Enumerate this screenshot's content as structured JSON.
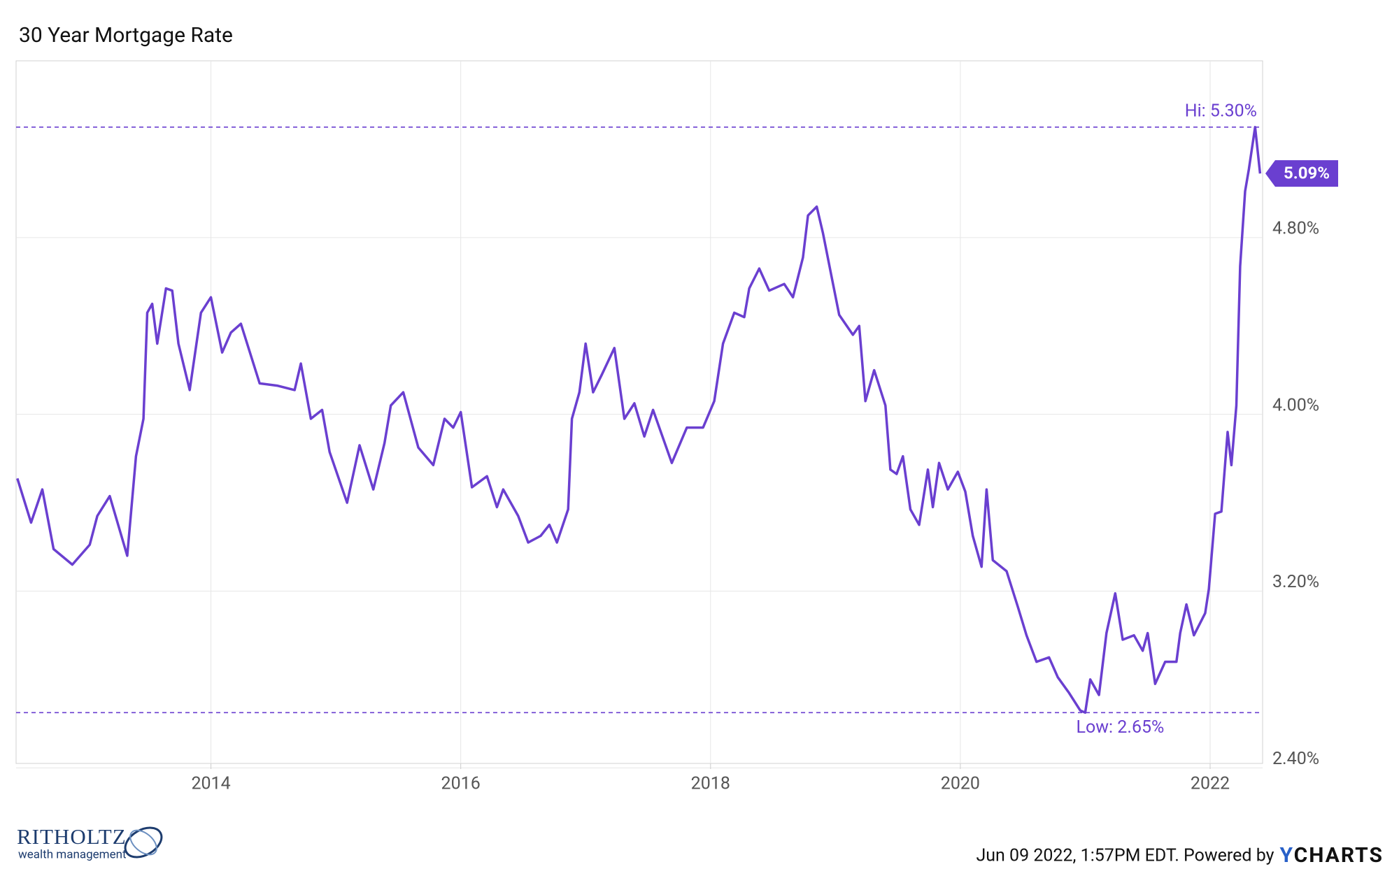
{
  "chart_data": {
    "type": "line",
    "title": "30 Year Mortgage Rate",
    "x": [
      2012.45,
      2012.56,
      2012.65,
      2012.74,
      2012.89,
      2013.03,
      2013.09,
      2013.19,
      2013.33,
      2013.4,
      2013.46,
      2013.49,
      2013.53,
      2013.57,
      2013.64,
      2013.69,
      2013.74,
      2013.83,
      2013.92,
      2014.0,
      2014.09,
      2014.16,
      2014.24,
      2014.39,
      2014.53,
      2014.67,
      2014.72,
      2014.8,
      2014.89,
      2014.95,
      2015.09,
      2015.19,
      2015.3,
      2015.39,
      2015.44,
      2015.54,
      2015.66,
      2015.78,
      2015.87,
      2015.94,
      2016.0,
      2016.09,
      2016.21,
      2016.29,
      2016.34,
      2016.46,
      2016.54,
      2016.64,
      2016.71,
      2016.77,
      2016.86,
      2016.89,
      2016.95,
      2017.0,
      2017.06,
      2017.13,
      2017.23,
      2017.31,
      2017.39,
      2017.47,
      2017.54,
      2017.69,
      2017.81,
      2017.94,
      2018.03,
      2018.1,
      2018.19,
      2018.27,
      2018.31,
      2018.39,
      2018.47,
      2018.59,
      2018.66,
      2018.74,
      2018.78,
      2018.85,
      2018.9,
      2018.97,
      2019.03,
      2019.14,
      2019.19,
      2019.24,
      2019.31,
      2019.4,
      2019.44,
      2019.49,
      2019.54,
      2019.6,
      2019.67,
      2019.74,
      2019.78,
      2019.83,
      2019.9,
      2019.98,
      2020.04,
      2020.1,
      2020.17,
      2020.21,
      2020.26,
      2020.37,
      2020.46,
      2020.53,
      2020.61,
      2020.71,
      2020.78,
      2020.87,
      2020.96,
      2021.0,
      2021.04,
      2021.11,
      2021.17,
      2021.24,
      2021.3,
      2021.39,
      2021.46,
      2021.5,
      2021.56,
      2021.64,
      2021.73,
      2021.76,
      2021.81,
      2021.87,
      2021.96,
      2021.99,
      2022.04,
      2022.09,
      2022.14,
      2022.17,
      2022.21,
      2022.24,
      2022.28,
      2022.31,
      2022.36,
      2022.4
    ],
    "series": [
      {
        "name": "30 Year Mortgage Rate",
        "color": "#6a3fd0",
        "values": [
          3.71,
          3.51,
          3.66,
          3.39,
          3.32,
          3.41,
          3.54,
          3.63,
          3.36,
          3.81,
          3.98,
          4.46,
          4.5,
          4.32,
          4.57,
          4.56,
          4.32,
          4.11,
          4.46,
          4.53,
          4.28,
          4.37,
          4.41,
          4.14,
          4.13,
          4.11,
          4.23,
          3.98,
          4.02,
          3.83,
          3.6,
          3.86,
          3.66,
          3.87,
          4.04,
          4.1,
          3.85,
          3.77,
          3.98,
          3.94,
          4.01,
          3.67,
          3.72,
          3.58,
          3.66,
          3.54,
          3.42,
          3.45,
          3.5,
          3.42,
          3.57,
          3.98,
          4.1,
          4.32,
          4.1,
          4.18,
          4.3,
          3.98,
          4.05,
          3.9,
          4.02,
          3.78,
          3.94,
          3.94,
          4.06,
          4.32,
          4.46,
          4.44,
          4.57,
          4.66,
          4.56,
          4.59,
          4.53,
          4.71,
          4.9,
          4.94,
          4.82,
          4.62,
          4.45,
          4.36,
          4.4,
          4.06,
          4.2,
          4.04,
          3.75,
          3.73,
          3.81,
          3.57,
          3.5,
          3.75,
          3.58,
          3.78,
          3.66,
          3.74,
          3.65,
          3.45,
          3.31,
          3.66,
          3.34,
          3.29,
          3.13,
          3.0,
          2.88,
          2.9,
          2.81,
          2.74,
          2.66,
          2.65,
          2.8,
          2.73,
          3.01,
          3.19,
          2.98,
          3.0,
          2.93,
          3.01,
          2.78,
          2.88,
          2.88,
          3.01,
          3.14,
          3.0,
          3.1,
          3.21,
          3.55,
          3.56,
          3.92,
          3.77,
          4.04,
          4.67,
          5.01,
          5.11,
          5.3,
          5.09
        ]
      }
    ],
    "xlim": [
      2012.44,
      2022.42
    ],
    "xticks": [
      2014,
      2016,
      2018,
      2020,
      2022
    ],
    "ylim": [
      2.42,
      5.6
    ],
    "yticks": [
      {
        "value": 2.4,
        "label": "2.40%"
      },
      {
        "value": 3.2,
        "label": "3.20%"
      },
      {
        "value": 4.0,
        "label": "4.00%"
      },
      {
        "value": 4.8,
        "label": "4.80%"
      }
    ],
    "grid": true,
    "hi_line": {
      "value": 5.3,
      "label": "Hi: 5.30%"
    },
    "low_line": {
      "value": 2.65,
      "label": "Low: 2.65%"
    },
    "last_value_label": {
      "value": 5.09,
      "label": "5.09%"
    }
  },
  "footer": {
    "brand": "RITHOLTZ",
    "brand_sub": "wealth management",
    "source": "Jun 09 2022, 1:57PM EDT. Powered by",
    "logo_y": "Y",
    "logo_rest": "CHARTS"
  }
}
